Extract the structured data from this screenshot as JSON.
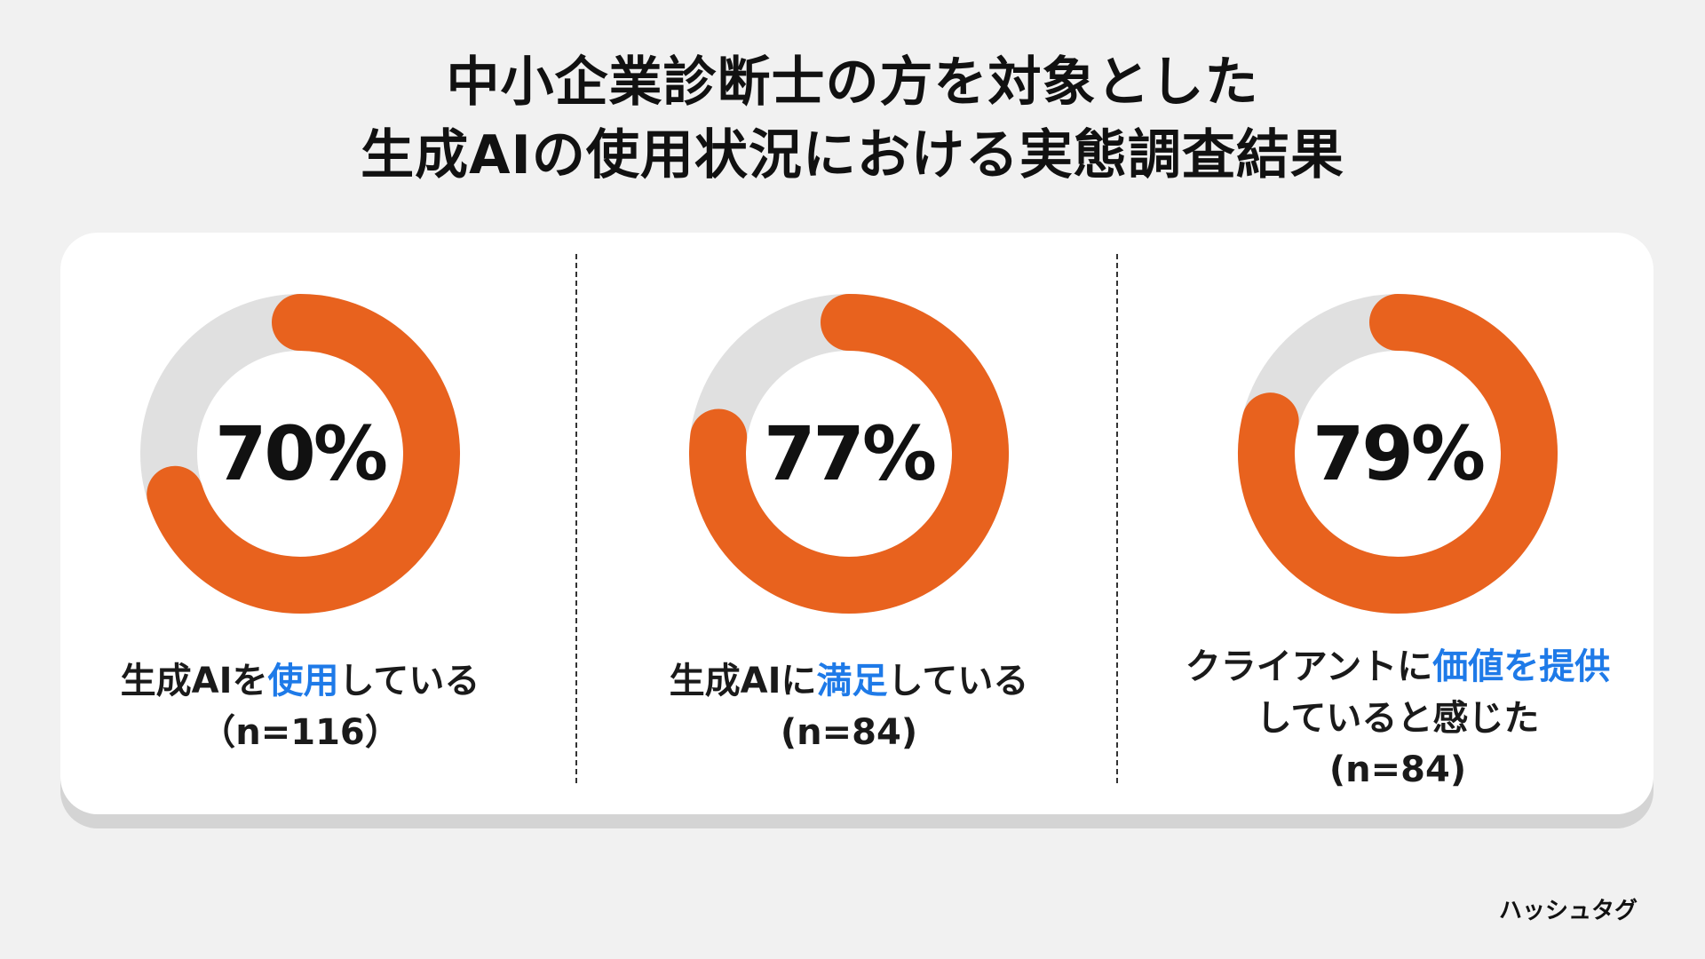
{
  "title": {
    "line1": "中小企業診断士の方を対象とした",
    "line2": "生成AIの使用状況における実態調査結果"
  },
  "colors": {
    "accent": "#e8621e",
    "track": "#e0e0e0",
    "highlight": "#1e7ae8",
    "background": "#f1f1f1",
    "card": "#ffffff"
  },
  "chart_data": [
    {
      "type": "pie",
      "value": 70,
      "value_label": "70%",
      "categories": [
        "生成AIを使用している",
        ""
      ],
      "values": [
        70,
        30
      ],
      "label": {
        "lines": [
          [
            {
              "text": "生成AIを",
              "highlight": false
            },
            {
              "text": "使用",
              "highlight": true
            },
            {
              "text": "している",
              "highlight": false
            }
          ],
          [
            {
              "text": "（n=116）",
              "highlight": false
            }
          ]
        ]
      }
    },
    {
      "type": "pie",
      "value": 77,
      "value_label": "77%",
      "categories": [
        "生成AIに満足している",
        ""
      ],
      "values": [
        77,
        23
      ],
      "label": {
        "lines": [
          [
            {
              "text": "生成AIに",
              "highlight": false
            },
            {
              "text": "満足",
              "highlight": true
            },
            {
              "text": "している",
              "highlight": false
            }
          ],
          [
            {
              "text": "(n=84)",
              "highlight": false
            }
          ]
        ]
      }
    },
    {
      "type": "pie",
      "value": 79,
      "value_label": "79%",
      "categories": [
        "クライアントに価値を提供していると感じた",
        ""
      ],
      "values": [
        79,
        21
      ],
      "label": {
        "lines": [
          [
            {
              "text": "クライアントに",
              "highlight": false
            },
            {
              "text": "価値を提供",
              "highlight": true
            }
          ],
          [
            {
              "text": "していると感じた",
              "highlight": false
            }
          ],
          [
            {
              "text": "(n=84)",
              "highlight": false
            }
          ]
        ]
      }
    }
  ],
  "footer": {
    "brand": "ハッシュタグ"
  }
}
